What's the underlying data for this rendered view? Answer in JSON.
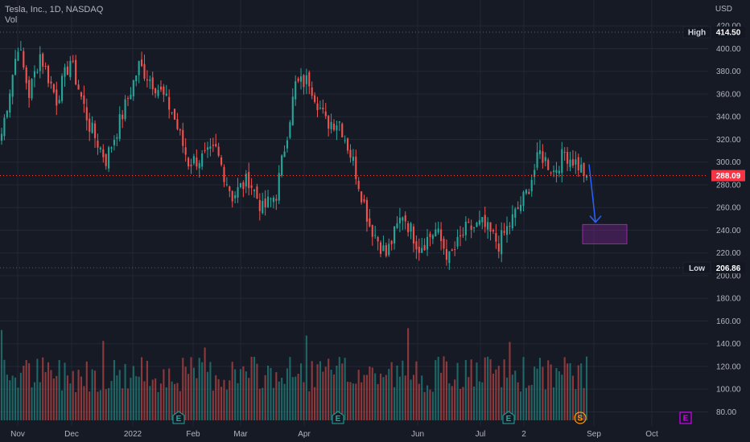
{
  "header": {
    "title": "Tesla, Inc., 1D, NASDAQ",
    "volume_label": "Vol"
  },
  "currency_label": "USD",
  "price_axis": {
    "ticks": [
      "420.00",
      "400.00",
      "380.00",
      "360.00",
      "340.00",
      "320.00",
      "300.00",
      "280.00",
      "260.00",
      "240.00",
      "220.00",
      "200.00",
      "180.00",
      "160.00",
      "140.00",
      "120.00",
      "100.00",
      "80.00"
    ]
  },
  "time_axis": {
    "labels": [
      "Nov",
      "Dec",
      "2022",
      "Feb",
      "Mar",
      "Apr",
      "Jun",
      "Jul",
      "2",
      "Sep",
      "Oct"
    ]
  },
  "high_marker": {
    "label": "High",
    "value": "414.50"
  },
  "low_marker": {
    "label": "Low",
    "value": "206.86"
  },
  "last_price": {
    "value": "288.09"
  },
  "event_badges": [
    {
      "glyph": "E",
      "type": "earnings"
    },
    {
      "glyph": "E",
      "type": "earnings"
    },
    {
      "glyph": "E",
      "type": "earnings"
    },
    {
      "glyph": "S",
      "type": "split"
    },
    {
      "glyph": "E",
      "type": "upcoming-earnings"
    }
  ],
  "colors": {
    "up": "#26a69a",
    "down": "#ef5350",
    "background": "#161a25",
    "grid": "#232736",
    "projection": "#9c27b0",
    "arrow": "#2962ff"
  },
  "chart_data": {
    "type": "candlestick",
    "title": "Tesla, Inc., 1D, NASDAQ",
    "ylabel": "USD",
    "ylim": [
      70,
      425
    ],
    "x_labels": [
      "Nov",
      "Dec",
      "2022",
      "Feb",
      "Mar",
      "Apr",
      "Jun",
      "Jul",
      "2",
      "Sep",
      "Oct"
    ],
    "price_anchors": [
      {
        "idx": 0,
        "close": 325
      },
      {
        "idx": 6,
        "close": 404
      },
      {
        "idx": 10,
        "close": 360
      },
      {
        "idx": 14,
        "close": 395
      },
      {
        "idx": 20,
        "close": 355
      },
      {
        "idx": 25,
        "close": 390
      },
      {
        "idx": 32,
        "close": 332
      },
      {
        "idx": 38,
        "close": 302
      },
      {
        "idx": 44,
        "close": 342
      },
      {
        "idx": 50,
        "close": 385
      },
      {
        "idx": 57,
        "close": 365
      },
      {
        "idx": 62,
        "close": 345
      },
      {
        "idx": 68,
        "close": 300
      },
      {
        "idx": 74,
        "close": 304
      },
      {
        "idx": 78,
        "close": 310
      },
      {
        "idx": 84,
        "close": 270
      },
      {
        "idx": 90,
        "close": 285
      },
      {
        "idx": 95,
        "close": 258
      },
      {
        "idx": 100,
        "close": 272
      },
      {
        "idx": 107,
        "close": 368
      },
      {
        "idx": 112,
        "close": 372
      },
      {
        "idx": 118,
        "close": 335
      },
      {
        "idx": 123,
        "close": 336
      },
      {
        "idx": 128,
        "close": 300
      },
      {
        "idx": 134,
        "close": 245
      },
      {
        "idx": 140,
        "close": 218
      },
      {
        "idx": 146,
        "close": 255
      },
      {
        "idx": 152,
        "close": 225
      },
      {
        "idx": 158,
        "close": 240
      },
      {
        "idx": 163,
        "close": 215
      },
      {
        "idx": 169,
        "close": 240
      },
      {
        "idx": 175,
        "close": 245
      },
      {
        "idx": 181,
        "close": 228
      },
      {
        "idx": 186,
        "close": 250
      },
      {
        "idx": 191,
        "close": 272
      },
      {
        "idx": 196,
        "close": 308
      },
      {
        "idx": 201,
        "close": 292
      },
      {
        "idx": 205,
        "close": 308
      },
      {
        "idx": 209,
        "close": 300
      },
      {
        "idx": 213,
        "close": 288
      }
    ],
    "high": 414.5,
    "low": 206.86,
    "last_close": 288.09,
    "projection": {
      "from_price": 298,
      "to_price": 245,
      "box_top": 245,
      "box_bottom": 228
    }
  }
}
